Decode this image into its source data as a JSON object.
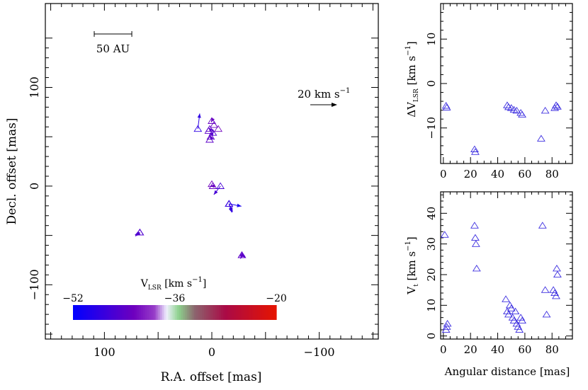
{
  "chart_data": [
    {
      "type": "vector-map",
      "xlabel": "R.A. offset [mas]",
      "ylabel": "Decl. offset [mas]",
      "xlim": [
        155,
        -155
      ],
      "ylim": [
        -155,
        185
      ],
      "xticks": [
        100,
        0,
        -100
      ],
      "xtick_labels": [
        "100",
        "0",
        "−100"
      ],
      "yticks": [
        100,
        0,
        -100
      ],
      "ytick_labels": [
        "100",
        "0",
        "−100"
      ],
      "scale_bar_label": "50 AU",
      "scale_bar_length_mas": 35,
      "velocity_ref_label": "20 km s",
      "velocity_ref_exp": "−1",
      "velocity_ref_kms": 20,
      "colorbar": {
        "label_main": "V",
        "label_sub": "LSR",
        "label_rest": " [km s",
        "label_exp": "−1",
        "label_end": "]",
        "vmin": -52,
        "vmax": -20,
        "tick_values": [
          -52,
          -36,
          -20
        ],
        "tick_labels": [
          "−52",
          "−36",
          "−20"
        ]
      },
      "points": [
        {
          "x": 13,
          "y": 58,
          "dx": -1.4,
          "dy": 11.4,
          "v": -48
        },
        {
          "x": 2,
          "y": 58,
          "dx": 0.8,
          "dy": 1.0,
          "v": -44
        },
        {
          "x": -1,
          "y": 54,
          "dx": -0.6,
          "dy": 0.9,
          "v": -45
        },
        {
          "x": 1,
          "y": 50,
          "dx": 0.5,
          "dy": 1.1,
          "v": -44
        },
        {
          "x": -2,
          "y": 62,
          "dx": 0.4,
          "dy": -0.9,
          "v": -43
        },
        {
          "x": 3,
          "y": 56,
          "dx": -0.3,
          "dy": 1.0,
          "v": -44
        },
        {
          "x": 0,
          "y": 66,
          "dx": 0.5,
          "dy": -1.0,
          "v": -43
        },
        {
          "x": 2,
          "y": 47,
          "dx": 0.0,
          "dy": 0.0,
          "v": -44
        },
        {
          "x": -6,
          "y": 58,
          "dx": 0.6,
          "dy": 0.0,
          "v": -42
        },
        {
          "x": 0,
          "y": 2,
          "dx": 0.4,
          "dy": 0.0,
          "v": -42
        },
        {
          "x": -1,
          "y": 0,
          "dx": 2.0,
          "dy": 0.0,
          "v": -43
        },
        {
          "x": -16,
          "y": -18,
          "dx": -9.2,
          "dy": -1.8,
          "v": -50
        },
        {
          "x": -16,
          "y": -18,
          "dx": -2.1,
          "dy": -6.4,
          "v": -48
        },
        {
          "x": -16,
          "y": -18,
          "dx": -2.6,
          "dy": -6.0,
          "v": -48
        },
        {
          "x": -16,
          "y": -18,
          "dx": -2.6,
          "dy": -5.6,
          "v": -47
        },
        {
          "x": -28,
          "y": -70,
          "dx": -2.0,
          "dy": -1.2,
          "v": -44
        },
        {
          "x": -28,
          "y": -70,
          "dx": -2.2,
          "dy": -1.6,
          "v": -44
        },
        {
          "x": -28,
          "y": -70,
          "dx": 1.0,
          "dy": -2.7,
          "v": -44
        },
        {
          "x": -28,
          "y": -70,
          "dx": -2.4,
          "dy": -0.8,
          "v": -44
        },
        {
          "x": 67,
          "y": -47,
          "dx": 3.6,
          "dy": -1.8,
          "v": -45
        },
        {
          "x": 67,
          "y": -47,
          "dx": 3.2,
          "dy": -2.1,
          "v": -45
        },
        {
          "x": 67,
          "y": -47,
          "dx": 2.8,
          "dy": -2.4,
          "v": -45
        },
        {
          "x": 67,
          "y": -47,
          "dx": 3.4,
          "dy": -2.7,
          "v": -45
        },
        {
          "x": -8,
          "y": 0,
          "dx": 4.9,
          "dy": -6.4,
          "v": -46
        }
      ],
      "series": [
        {
          "name": "Delta V_LSR vs angular distance",
          "xlabel": "Angular distance [mas]",
          "ylabel_main": "ΔV",
          "ylabel_sub": "LSR",
          "ylabel_rest": " [km s",
          "ylabel_exp": "−1",
          "ylabel_end": "]",
          "xlim": [
            -2,
            95
          ],
          "ylim": [
            -18,
            18
          ],
          "xticks": [
            0,
            20,
            40,
            60,
            80
          ],
          "yticks": [
            -10,
            0,
            10
          ],
          "ytick_labels": [
            "−10",
            "0",
            "10"
          ],
          "x": [
            2,
            2.5,
            23,
            23.5,
            47,
            48,
            50,
            52,
            54,
            57,
            58,
            72,
            75,
            82,
            83,
            84
          ],
          "y": [
            -5,
            -5.4,
            -14.8,
            -15.4,
            -4.9,
            -5.3,
            -5.5,
            -5.9,
            -6.1,
            -6.6,
            -7,
            -12.4,
            -6.1,
            -5.5,
            -4.9,
            -5.2
          ]
        },
        {
          "name": "V_t vs angular distance",
          "xlabel": "Angular distance [mas]",
          "ylabel_main": "V",
          "ylabel_sub": "t",
          "ylabel_rest": " [km s",
          "ylabel_exp": "−1",
          "ylabel_end": "]",
          "xlim": [
            -2,
            95
          ],
          "ylim": [
            -1,
            47
          ],
          "xticks": [
            0,
            20,
            40,
            60,
            80
          ],
          "yticks": [
            0,
            10,
            20,
            30,
            40
          ],
          "ytick_labels": [
            "0",
            "10",
            "20",
            "30",
            "40"
          ],
          "x": [
            1,
            2,
            2.5,
            3,
            23,
            23.5,
            24,
            24.5,
            46,
            47,
            48,
            49,
            50,
            51,
            52,
            53,
            54,
            55,
            56,
            57,
            58,
            73,
            75,
            76,
            81,
            82,
            83,
            83.5,
            84
          ],
          "y": [
            33,
            2,
            3,
            4,
            36,
            32,
            30,
            22,
            12,
            8,
            7,
            10,
            9,
            6,
            5,
            8,
            4,
            3,
            2,
            6,
            5,
            36,
            15,
            7,
            15,
            14,
            13,
            22,
            20
          ]
        }
      ]
    }
  ]
}
